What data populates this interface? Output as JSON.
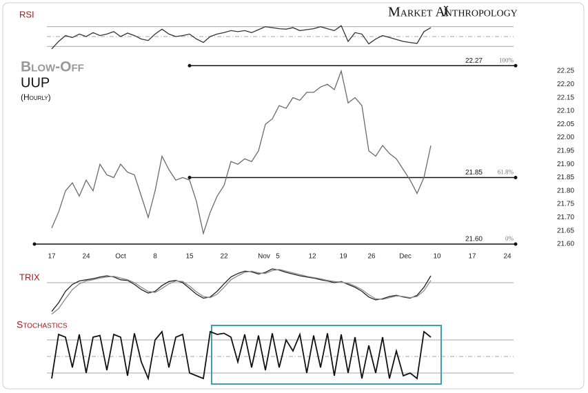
{
  "header": {
    "brand": "Market Anthropology"
  },
  "chart_data": [
    {
      "type": "line",
      "title": "Blow-Off",
      "subtitle": "UUP",
      "note": "(Hourly)",
      "x": [
        0,
        1,
        2,
        3,
        4,
        5,
        6,
        7,
        8,
        9,
        10,
        11,
        12,
        13,
        14,
        15,
        16,
        17,
        18,
        19,
        20,
        21,
        22,
        23,
        24,
        25,
        26,
        27,
        28,
        29,
        30,
        31,
        32,
        33,
        34,
        35,
        36,
        37,
        38,
        39,
        40,
        41,
        42,
        43,
        44,
        45,
        46,
        47,
        48,
        49,
        50,
        51,
        52,
        53,
        54,
        55
      ],
      "series": [
        {
          "color": "#6a6a6a",
          "values": [
            21.66,
            21.72,
            21.8,
            21.83,
            21.78,
            21.84,
            21.8,
            21.9,
            21.86,
            21.85,
            21.9,
            21.87,
            21.86,
            21.78,
            21.7,
            21.8,
            21.93,
            21.88,
            21.84,
            21.85,
            21.84,
            21.76,
            21.64,
            21.72,
            21.78,
            21.82,
            21.91,
            21.9,
            21.92,
            21.91,
            21.95,
            22.05,
            22.07,
            22.12,
            22.11,
            22.15,
            22.14,
            22.17,
            22.17,
            22.19,
            22.2,
            22.18,
            22.25,
            22.13,
            22.15,
            22.12,
            21.95,
            21.93,
            21.97,
            21.94,
            21.92,
            21.88,
            21.84,
            21.79,
            21.85,
            21.97
          ]
        }
      ],
      "xlim": [
        -2.5,
        67.5
      ],
      "xticks": [
        {
          "value": 0,
          "label": "17"
        },
        {
          "value": 5,
          "label": "24"
        },
        {
          "value": 10,
          "label": "Oct"
        },
        {
          "value": 15,
          "label": "8"
        },
        {
          "value": 20,
          "label": "15"
        },
        {
          "value": 25,
          "label": "22"
        },
        {
          "value": 30.8,
          "label": "Nov"
        },
        {
          "value": 32.8,
          "label": "5"
        },
        {
          "value": 37.8,
          "label": "12"
        },
        {
          "value": 42.3,
          "label": "19"
        },
        {
          "value": 46.4,
          "label": "26"
        },
        {
          "value": 51.3,
          "label": "Dec"
        },
        {
          "value": 55.9,
          "label": "10"
        },
        {
          "value": 61,
          "label": "17"
        },
        {
          "value": 66.1,
          "label": "24"
        }
      ],
      "ylim": [
        21.6,
        22.25
      ],
      "yticks": [
        {
          "value": 21.6,
          "label": "21.60"
        },
        21.65,
        {
          "value": 21.7,
          "label": "21.70"
        },
        21.75,
        {
          "value": 21.8,
          "label": "21.80"
        },
        21.85,
        {
          "value": 21.9,
          "label": "21.90"
        },
        21.95,
        {
          "value": 22,
          "label": "22.00"
        },
        22.05,
        {
          "value": 22.1,
          "label": "22.10"
        },
        22.15,
        {
          "value": 22.2,
          "label": "22.20"
        },
        22.25
      ],
      "levels": {
        "values": [
          22.27,
          21.85,
          21.6
        ],
        "value_labels": [
          "22.27",
          "21.85",
          "21.60"
        ],
        "percent_labels": [
          "100%",
          "61.8%",
          "0%"
        ],
        "from_x": [
          20,
          20,
          -2.5
        ]
      }
    },
    {
      "type": "line",
      "title": "RSI",
      "x": [
        0,
        1,
        2,
        3,
        4,
        5,
        6,
        7,
        8,
        9,
        10,
        11,
        12,
        13,
        14,
        15,
        16,
        17,
        18,
        19,
        20,
        21,
        22,
        23,
        24,
        25,
        26,
        27,
        28,
        29,
        30,
        31,
        32,
        33,
        34,
        35,
        36,
        37,
        38,
        39,
        40,
        41,
        42,
        43,
        44,
        45,
        46,
        47,
        48,
        49,
        50,
        51,
        52,
        53,
        54,
        55
      ],
      "series": [
        {
          "color": "#333333",
          "values": [
            25,
            40,
            52,
            48,
            55,
            50,
            58,
            52,
            55,
            60,
            50,
            57,
            52,
            45,
            42,
            55,
            65,
            55,
            50,
            52,
            55,
            45,
            38,
            50,
            55,
            58,
            62,
            60,
            62,
            58,
            64,
            70,
            68,
            66,
            65,
            68,
            62,
            64,
            66,
            70,
            66,
            62,
            72,
            40,
            58,
            55,
            35,
            45,
            52,
            48,
            44,
            40,
            38,
            36,
            60,
            68
          ]
        }
      ],
      "xlim": [
        -2.5,
        67.5
      ],
      "ylim": [
        15,
        85
      ],
      "ref_lines": [
        {
          "value": 70,
          "dashed": false
        },
        {
          "value": 50,
          "dashed": true
        },
        {
          "value": 30,
          "dashed": false
        }
      ]
    },
    {
      "type": "line",
      "title": "TRIX",
      "x": [
        0,
        1,
        2,
        3,
        4,
        5,
        6,
        7,
        8,
        9,
        10,
        11,
        12,
        13,
        14,
        15,
        16,
        17,
        18,
        19,
        20,
        21,
        22,
        23,
        24,
        25,
        26,
        27,
        28,
        29,
        30,
        31,
        32,
        33,
        34,
        35,
        36,
        37,
        38,
        39,
        40,
        41,
        42,
        43,
        44,
        45,
        46,
        47,
        48,
        49,
        50,
        51,
        52,
        53,
        54,
        55
      ],
      "series": [
        {
          "color": "#222222",
          "values": [
            -0.05,
            -0.035,
            -0.015,
            -0.003,
            0.003,
            0.005,
            0.007,
            0.01,
            0.012,
            0.01,
            0.005,
            0.004,
            -0.003,
            -0.012,
            -0.018,
            -0.015,
            -0.005,
            0.002,
            0.004,
            0.0,
            -0.01,
            -0.02,
            -0.027,
            -0.025,
            -0.015,
            -0.002,
            0.01,
            0.016,
            0.02,
            0.019,
            0.015,
            0.018,
            0.024,
            0.022,
            0.018,
            0.015,
            0.012,
            0.01,
            0.008,
            0.005,
            0.003,
            0.0,
            0.002,
            -0.003,
            -0.008,
            -0.015,
            -0.025,
            -0.03,
            -0.028,
            -0.024,
            -0.022,
            -0.025,
            -0.027,
            -0.022,
            -0.008,
            0.012
          ]
        },
        {
          "color": "#8a8a8a",
          "values": [
            -0.055,
            -0.045,
            -0.028,
            -0.012,
            -0.002,
            0.003,
            0.005,
            0.008,
            0.01,
            0.011,
            0.008,
            0.005,
            0.0,
            -0.008,
            -0.015,
            -0.017,
            -0.01,
            -0.002,
            0.003,
            0.002,
            -0.006,
            -0.016,
            -0.024,
            -0.026,
            -0.02,
            -0.008,
            0.005,
            0.012,
            0.018,
            0.02,
            0.017,
            0.016,
            0.021,
            0.023,
            0.02,
            0.017,
            0.014,
            0.011,
            0.009,
            0.007,
            0.004,
            0.002,
            0.001,
            -0.001,
            -0.006,
            -0.012,
            -0.021,
            -0.028,
            -0.029,
            -0.026,
            -0.023,
            -0.024,
            -0.026,
            -0.024,
            -0.014,
            0.004
          ]
        }
      ],
      "xlim": [
        -2.5,
        67.5
      ],
      "ylim": [
        -0.06,
        0.03
      ],
      "ref_lines": [
        {
          "value": 0,
          "dashed": false
        }
      ]
    },
    {
      "type": "line",
      "title": "Stochastics",
      "x": [
        0,
        1,
        2,
        3,
        4,
        5,
        6,
        7,
        8,
        9,
        10,
        11,
        12,
        13,
        14,
        15,
        16,
        17,
        18,
        19,
        20,
        21,
        22,
        23,
        24,
        25,
        26,
        27,
        28,
        29,
        30,
        31,
        32,
        33,
        34,
        35,
        36,
        37,
        38,
        39,
        40,
        41,
        42,
        43,
        44,
        45,
        46,
        47,
        48,
        49,
        50,
        51,
        52,
        53,
        54,
        55
      ],
      "series": [
        {
          "color": "#111111",
          "values": [
            10,
            90,
            85,
            30,
            90,
            20,
            85,
            88,
            25,
            90,
            85,
            15,
            92,
            40,
            10,
            80,
            95,
            30,
            85,
            90,
            20,
            15,
            10,
            95,
            90,
            92,
            85,
            40,
            90,
            30,
            88,
            25,
            92,
            30,
            80,
            60,
            90,
            20,
            88,
            30,
            92,
            15,
            90,
            20,
            85,
            10,
            70,
            20,
            85,
            10,
            60,
            15,
            20,
            10,
            95,
            85
          ]
        }
      ],
      "xlim": [
        -2.5,
        67.5
      ],
      "ylim": [
        0,
        100
      ],
      "ref_lines": [
        {
          "value": 80,
          "dashed": false
        },
        {
          "value": 50,
          "dashed": true
        },
        {
          "value": 20,
          "dashed": false
        }
      ],
      "highlight": {
        "from": 23.2,
        "to": 56.5,
        "color": "#3aa0b0"
      }
    }
  ]
}
